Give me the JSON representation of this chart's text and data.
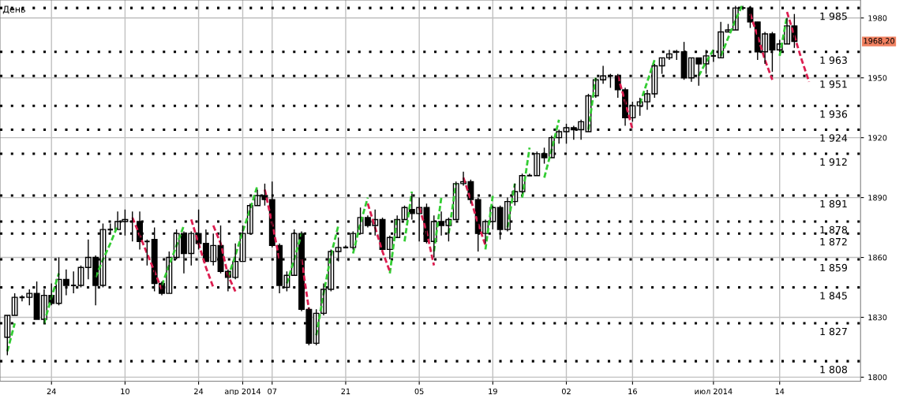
{
  "chart_data": {
    "type": "candlestick",
    "title": "День",
    "categories": [
      null,
      null,
      null,
      null,
      null,
      null,
      "24",
      null,
      null,
      null,
      null,
      null,
      null,
      null,
      null,
      null,
      "10",
      null,
      null,
      null,
      null,
      null,
      null,
      null,
      null,
      null,
      "24",
      null,
      null,
      null,
      null,
      null,
      "апр 2014",
      null,
      null,
      null,
      "07",
      null,
      null,
      null,
      null,
      null,
      null,
      null,
      null,
      null,
      "21",
      null,
      null,
      null,
      null,
      null,
      null,
      null,
      null,
      null,
      "05",
      null,
      null,
      null,
      null,
      null,
      null,
      null,
      null,
      null,
      "19",
      null,
      null,
      null,
      null,
      null,
      null,
      null,
      null,
      null,
      "02",
      null,
      null,
      null,
      null,
      null,
      null,
      null,
      null,
      "16",
      null,
      null,
      null,
      null,
      null,
      null,
      null,
      null,
      null,
      null,
      "июл 2014",
      null,
      null,
      null,
      null,
      null,
      null,
      null,
      null,
      "14",
      null,
      null,
      null,
      null,
      null,
      null,
      null,
      null,
      null,
      null,
      null
    ],
    "ohlc": [
      [
        1820,
        1831,
        1811,
        1831
      ],
      [
        1831,
        1842,
        1831,
        1840
      ],
      [
        1840,
        1841,
        1838,
        1840
      ],
      [
        1840,
        1844,
        1836,
        1842
      ],
      [
        1842,
        1848,
        1829,
        1829
      ],
      [
        1829,
        1844,
        1827,
        1841
      ],
      [
        1841,
        1847,
        1836,
        1837
      ],
      [
        1837,
        1860,
        1836,
        1849
      ],
      [
        1849,
        1854,
        1841,
        1846
      ],
      [
        1846,
        1853,
        1842,
        1846
      ],
      [
        1846,
        1856,
        1845,
        1855
      ],
      [
        1855,
        1869,
        1849,
        1860
      ],
      [
        1860,
        1861,
        1836,
        1846
      ],
      [
        1846,
        1877,
        1845,
        1874
      ],
      [
        1874,
        1877,
        1872,
        1874
      ],
      [
        1874,
        1883,
        1874,
        1878
      ],
      [
        1878,
        1884,
        1871,
        1879
      ],
      [
        1878,
        1883,
        1868,
        1878
      ],
      [
        1878,
        1883,
        1864,
        1868
      ],
      [
        1868,
        1869,
        1856,
        1868
      ],
      [
        1869,
        1875,
        1843,
        1847
      ],
      [
        1847,
        1848,
        1841,
        1842
      ],
      [
        1842,
        1863,
        1842,
        1860
      ],
      [
        1860,
        1874,
        1859,
        1872
      ],
      [
        1872,
        1873,
        1852,
        1862
      ],
      [
        1862,
        1873,
        1856,
        1872
      ],
      [
        1872,
        1884,
        1864,
        1867
      ],
      [
        1867,
        1874,
        1858,
        1858
      ],
      [
        1858,
        1872,
        1856,
        1866
      ],
      [
        1866,
        1876,
        1852,
        1853
      ],
      [
        1853,
        1854,
        1843,
        1850
      ],
      [
        1850,
        1867,
        1849,
        1858
      ],
      [
        1858,
        1876,
        1858,
        1872
      ],
      [
        1872,
        1887,
        1872,
        1886
      ],
      [
        1886,
        1894,
        1886,
        1891
      ],
      [
        1891,
        1897,
        1886,
        1889
      ],
      [
        1889,
        1898,
        1865,
        1866
      ],
      [
        1866,
        1867,
        1842,
        1846
      ],
      [
        1845,
        1853,
        1843,
        1851
      ],
      [
        1851,
        1874,
        1851,
        1872
      ],
      [
        1872,
        1873,
        1833,
        1834
      ],
      [
        1834,
        1835,
        1816,
        1817
      ],
      [
        1817,
        1834,
        1816,
        1832
      ],
      [
        1832,
        1847,
        1831,
        1844
      ],
      [
        1844,
        1864,
        1843,
        1863
      ],
      [
        1863,
        1870,
        1858,
        1865
      ],
      [
        1865,
        1866,
        1865,
        1865
      ],
      [
        1865,
        1873,
        1864,
        1872
      ],
      [
        1872,
        1885,
        1872,
        1880
      ],
      [
        1880,
        1881,
        1875,
        1876
      ],
      [
        1876,
        1884,
        1871,
        1879
      ],
      [
        1879,
        1880,
        1864,
        1864
      ],
      [
        1864,
        1871,
        1859,
        1870
      ],
      [
        1870,
        1881,
        1870,
        1879
      ],
      [
        1879,
        1886,
        1879,
        1885
      ],
      [
        1884,
        1892,
        1879,
        1882
      ],
      [
        1882,
        1890,
        1868,
        1885
      ],
      [
        1885,
        1887,
        1867,
        1868
      ],
      [
        1868,
        1881,
        1860,
        1878
      ],
      [
        1878,
        1883,
        1871,
        1876
      ],
      [
        1876,
        1880,
        1868,
        1879
      ],
      [
        1879,
        1898,
        1879,
        1897
      ],
      [
        1897,
        1903,
        1896,
        1898
      ],
      [
        1898,
        1899,
        1887,
        1889
      ],
      [
        1889,
        1890,
        1863,
        1872
      ],
      [
        1872,
        1879,
        1867,
        1878
      ],
      [
        1878,
        1886,
        1874,
        1885
      ],
      [
        1885,
        1886,
        1869,
        1874
      ],
      [
        1874,
        1890,
        1873,
        1888
      ],
      [
        1888,
        1897,
        1886,
        1893
      ],
      [
        1893,
        1902,
        1892,
        1901
      ],
      [
        1901,
        1902,
        1901,
        1901
      ],
      [
        1901,
        1913,
        1901,
        1912
      ],
      [
        1912,
        1915,
        1907,
        1910
      ],
      [
        1910,
        1921,
        1910,
        1920
      ],
      [
        1920,
        1924,
        1917,
        1923
      ],
      [
        1923,
        1927,
        1917,
        1925
      ],
      [
        1925,
        1926,
        1919,
        1924
      ],
      [
        1924,
        1929,
        1919,
        1928
      ],
      [
        1923,
        1942,
        1923,
        1941
      ],
      [
        1941,
        1950,
        1940,
        1949
      ],
      [
        1949,
        1956,
        1947,
        1951
      ],
      [
        1951,
        1952,
        1945,
        1951
      ],
      [
        1951,
        1952,
        1940,
        1944
      ],
      [
        1944,
        1945,
        1926,
        1930
      ],
      [
        1930,
        1938,
        1928,
        1936
      ],
      [
        1936,
        1940,
        1931,
        1938
      ],
      [
        1938,
        1944,
        1934,
        1942
      ],
      [
        1942,
        1957,
        1940,
        1956
      ],
      [
        1956,
        1960,
        1952,
        1960
      ],
      [
        1960,
        1964,
        1959,
        1962
      ],
      [
        1963,
        1964,
        1959,
        1963
      ],
      [
        1963,
        1968,
        1949,
        1950
      ],
      [
        1950,
        1960,
        1948,
        1960
      ],
      [
        1960,
        1960,
        1946,
        1957
      ],
      [
        1957,
        1964,
        1952,
        1961
      ],
      [
        1961,
        1964,
        1958,
        1961
      ],
      [
        1960,
        1978,
        1960,
        1973
      ],
      [
        1973,
        1977,
        1973,
        1974
      ],
      [
        1974,
        1986,
        1974,
        1985
      ],
      [
        1985,
        1986,
        1984,
        1985
      ],
      [
        1985,
        1986,
        1975,
        1978
      ],
      [
        1978,
        1978,
        1959,
        1963
      ],
      [
        1963,
        1973,
        1957,
        1972
      ],
      [
        1972,
        1973,
        1953,
        1964
      ],
      [
        1964,
        1969,
        1963,
        1967
      ],
      [
        1967,
        1980,
        1967,
        1976
      ],
      [
        1976,
        1982,
        1965,
        1968.2
      ],
      null,
      null,
      null,
      null,
      null,
      null,
      null,
      null,
      null
    ],
    "series": [
      {
        "type": "line",
        "color": "#33cc33",
        "line_style": "dashed",
        "values": [
          1813,
          1827,
          null,
          null,
          null,
          1827,
          1840,
          1852,
          null,
          null,
          null,
          null,
          1850,
          1859,
          1867,
          1876,
          null,
          null,
          null,
          null,
          null,
          1846,
          1856,
          1866,
          1876,
          null,
          null,
          null,
          null,
          null,
          1850,
          1861,
          1873,
          1884,
          1896,
          null,
          null,
          null,
          1847,
          1859,
          1872,
          null,
          1821,
          1842,
          1861,
          1876,
          null,
          1862,
          1877,
          1890,
          null,
          null,
          1852,
          1880,
          null,
          null,
          null,
          null,
          1863,
          1890,
          null,
          null,
          null,
          null,
          null,
          1864,
          1891,
          null,
          1875,
          1897,
          null,
          null,
          null,
          1900,
          1914,
          1929,
          null,
          null,
          null,
          1924,
          1950,
          null,
          null,
          null,
          null,
          null,
          1937,
          1948,
          1959,
          null,
          null,
          null,
          null,
          null,
          1951,
          1958,
          1964,
          null,
          null,
          null,
          null,
          null,
          null,
          null,
          null,
          1961,
          1981,
          null,
          null,
          null,
          null,
          null,
          null,
          null,
          null,
          null,
          null
        ]
      },
      {
        "type": "line",
        "color": "#33cc33",
        "line_style": "dashed",
        "values": [
          null,
          null,
          null,
          null,
          null,
          null,
          null,
          null,
          null,
          null,
          null,
          null,
          null,
          null,
          null,
          null,
          null,
          null,
          null,
          null,
          null,
          null,
          null,
          null,
          null,
          null,
          null,
          null,
          null,
          null,
          null,
          null,
          null,
          null,
          null,
          null,
          null,
          null,
          null,
          null,
          null,
          null,
          null,
          null,
          null,
          null,
          null,
          null,
          null,
          null,
          null,
          null,
          null,
          null,
          1868,
          1893,
          null,
          null,
          null,
          null,
          1872,
          1897,
          null,
          null,
          null,
          null,
          null,
          null,
          null,
          null,
          1890,
          1915,
          null,
          null,
          null,
          null,
          null,
          null,
          null,
          null,
          null,
          null,
          null,
          null,
          null,
          null,
          null,
          null,
          null,
          null,
          null,
          null,
          null,
          null,
          null,
          null,
          null,
          1961,
          1970,
          1979,
          1987,
          null,
          null,
          null,
          null,
          null,
          null,
          null,
          null,
          null,
          null,
          null,
          null,
          null,
          null,
          null,
          null
        ]
      },
      {
        "type": "line",
        "color": "#dc1e50",
        "line_style": "dashed",
        "values": [
          null,
          null,
          null,
          null,
          null,
          null,
          null,
          null,
          null,
          null,
          null,
          null,
          null,
          null,
          null,
          null,
          null,
          1880,
          1871,
          1862,
          1853,
          1844,
          null,
          null,
          null,
          1879,
          1867,
          1855,
          1845,
          null,
          null,
          null,
          null,
          null,
          null,
          1894,
          1877,
          1859,
          null,
          null,
          1859,
          1834,
          null,
          null,
          null,
          null,
          null,
          null,
          null,
          1887,
          1875,
          1863,
          1853,
          null,
          null,
          null,
          1885,
          1873,
          1856,
          null,
          null,
          null,
          1900,
          1889,
          1877,
          1866,
          null,
          null,
          null,
          null,
          null,
          null,
          null,
          null,
          null,
          null,
          null,
          null,
          null,
          null,
          null,
          null,
          null,
          1951,
          1938,
          1924,
          null,
          null,
          null,
          null,
          null,
          null,
          null,
          null,
          null,
          null,
          null,
          null,
          null,
          null,
          null,
          1982,
          1971,
          1959,
          1949,
          null,
          1983,
          1971,
          1959,
          1948,
          null,
          null,
          null,
          null,
          null,
          null,
          null
        ]
      },
      {
        "type": "line",
        "color": "#dc1e50",
        "line_style": "dashed",
        "values": [
          null,
          null,
          null,
          null,
          null,
          null,
          null,
          null,
          null,
          null,
          null,
          null,
          null,
          null,
          null,
          null,
          null,
          null,
          null,
          null,
          null,
          null,
          null,
          null,
          null,
          null,
          null,
          null,
          1876,
          1867,
          1851,
          1843,
          null,
          null,
          null,
          null,
          null,
          null,
          null,
          null,
          null,
          null,
          null,
          null,
          null,
          null,
          null,
          null,
          null,
          null,
          null,
          null,
          null,
          null,
          null,
          null,
          null,
          null,
          null,
          null,
          null,
          null,
          null,
          null,
          null,
          null,
          null,
          null,
          null,
          null,
          null,
          null,
          null,
          null,
          null,
          null,
          null,
          null,
          null,
          null,
          null,
          null,
          null,
          null,
          null,
          null,
          null,
          null,
          null,
          null,
          null,
          null,
          null,
          null,
          null,
          null,
          null,
          null,
          null,
          null,
          null,
          null,
          null,
          null,
          null,
          null,
          null,
          null,
          null,
          null,
          null,
          null,
          null,
          null,
          null,
          null,
          null
        ]
      }
    ],
    "ylim": [
      1798,
      1989
    ],
    "yticks": [
      1800,
      1830,
      1860,
      1890,
      1920,
      1950,
      1980
    ],
    "grid": true,
    "ref_lines": [
      {
        "axis": "y",
        "value": 1985,
        "label": "1 985",
        "color": "#000000",
        "line_style": "dotted"
      },
      {
        "axis": "y",
        "value": 1963,
        "label": "1 963",
        "color": "#000000",
        "line_style": "dotted"
      },
      {
        "axis": "y",
        "value": 1951,
        "label": "1 951",
        "color": "#000000",
        "line_style": "dotted"
      },
      {
        "axis": "y",
        "value": 1936,
        "label": "1 936",
        "color": "#000000",
        "line_style": "dotted"
      },
      {
        "axis": "y",
        "value": 1924,
        "label": "1 924",
        "color": "#000000",
        "line_style": "dotted"
      },
      {
        "axis": "y",
        "value": 1912,
        "label": "1 912",
        "color": "#000000",
        "line_style": "dotted"
      },
      {
        "axis": "y",
        "value": 1891,
        "label": "1 891",
        "color": "#000000",
        "line_style": "dotted"
      },
      {
        "axis": "y",
        "value": 1878,
        "label": "1 878",
        "color": "#000000",
        "line_style": "dotted"
      },
      {
        "axis": "y",
        "value": 1872,
        "label": "1 872",
        "color": "#000000",
        "line_style": "dotted"
      },
      {
        "axis": "y",
        "value": 1859,
        "label": "1 859",
        "color": "#000000",
        "line_style": "dotted"
      },
      {
        "axis": "y",
        "value": 1845,
        "label": "1 845",
        "color": "#000000",
        "line_style": "dotted"
      },
      {
        "axis": "y",
        "value": 1827,
        "label": "1 827",
        "color": "#000000",
        "line_style": "dotted"
      },
      {
        "axis": "y",
        "value": 1808,
        "label": "1 808",
        "color": "#000000",
        "line_style": "dotted"
      }
    ],
    "annotations": [
      "1968,20"
    ]
  }
}
